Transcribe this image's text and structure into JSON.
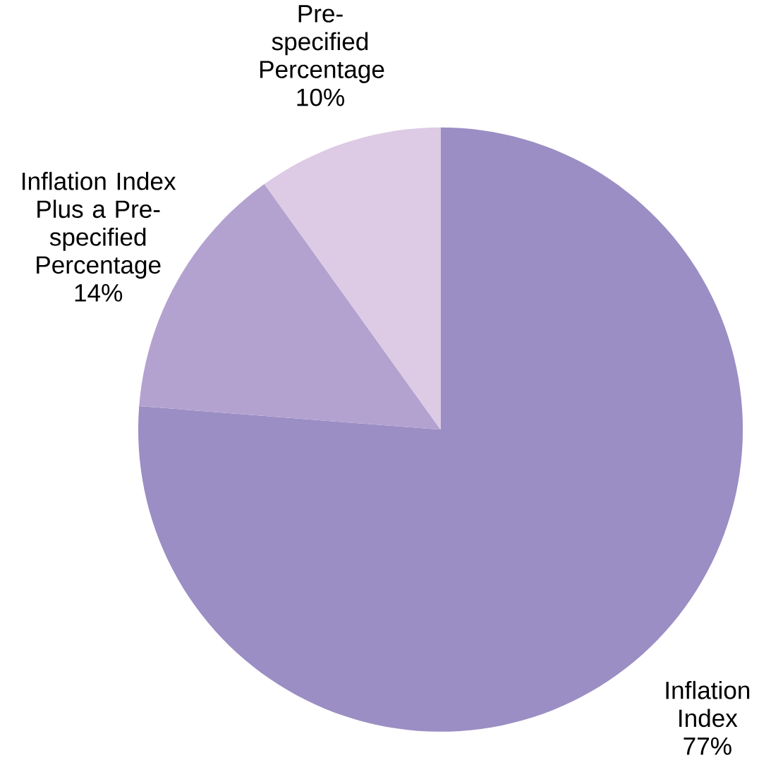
{
  "chart_data": {
    "type": "pie",
    "categories": [
      "Inflation Index",
      "Inflation Index Plus a Pre-specified Percentage",
      "Pre-specified Percentage"
    ],
    "values": [
      77,
      14,
      10
    ],
    "value_labels": [
      "77%",
      "14%",
      "10%"
    ],
    "colors": [
      "#9b8ec4",
      "#b3a2d0",
      "#ddcae4"
    ]
  }
}
